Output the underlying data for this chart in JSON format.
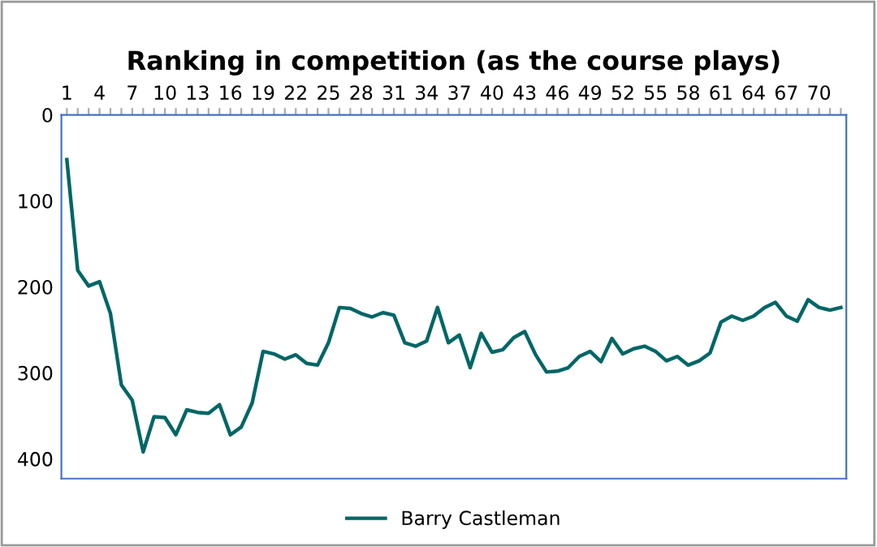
{
  "chart_data": {
    "type": "line",
    "title": "Ranking in competition (as the course plays)",
    "categories": [
      "1",
      null,
      null,
      "4",
      null,
      null,
      "7",
      null,
      null,
      "10",
      null,
      null,
      "13",
      null,
      null,
      "16",
      null,
      null,
      "19",
      null,
      null,
      "22",
      null,
      null,
      "25",
      null,
      null,
      "28",
      null,
      null,
      "31",
      null,
      null,
      "34",
      null,
      null,
      "37",
      null,
      null,
      "40",
      null,
      null,
      "43",
      null,
      null,
      "46",
      null,
      null,
      "49",
      null,
      null,
      "52",
      null,
      null,
      "55",
      null,
      null,
      "58",
      null,
      null,
      "61",
      null,
      null,
      "64",
      null,
      null,
      "67",
      null,
      null,
      "70",
      null,
      null
    ],
    "series": [
      {
        "name": "Barry Castleman",
        "color": "#006666",
        "values": [
          52,
          181,
          199,
          194,
          231,
          314,
          332,
          392,
          351,
          352,
          372,
          343,
          346,
          347,
          337,
          372,
          363,
          335,
          275,
          278,
          284,
          279,
          289,
          291,
          265,
          224,
          225,
          231,
          235,
          230,
          233,
          265,
          269,
          263,
          224,
          265,
          256,
          294,
          254,
          276,
          273,
          259,
          252,
          279,
          299,
          298,
          294,
          281,
          275,
          287,
          260,
          278,
          272,
          269,
          275,
          286,
          281,
          291,
          286,
          277,
          241,
          234,
          239,
          234,
          224,
          218,
          234,
          240,
          215,
          224,
          227,
          224
        ]
      }
    ],
    "ylim": [
      423,
      0
    ],
    "yticks": [
      0,
      100,
      200,
      300,
      400
    ],
    "grid": false,
    "legend": "bottom",
    "marker": "none",
    "line_style": "solid"
  }
}
